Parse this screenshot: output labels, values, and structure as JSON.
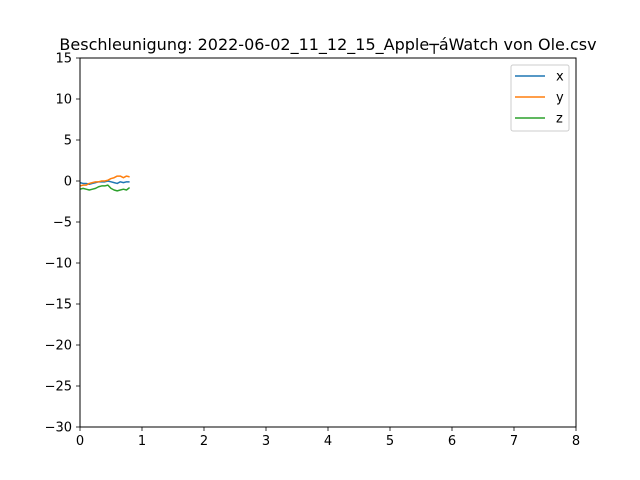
{
  "chart_data": {
    "type": "line",
    "title": "Beschleunigung: 2022-06-02_11_12_15_Apple┬áWatch von Ole.csv",
    "xlabel": "",
    "ylabel": "",
    "xlim": [
      0,
      8
    ],
    "ylim": [
      -30,
      15
    ],
    "xticks": [
      0,
      1,
      2,
      3,
      4,
      5,
      6,
      7,
      8
    ],
    "yticks": [
      -30,
      -25,
      -20,
      -15,
      -10,
      -5,
      0,
      5,
      10,
      15
    ],
    "grid": false,
    "legend_position": "top-right",
    "series": [
      {
        "name": "x",
        "color": "#1f77b4",
        "x": [
          0,
          0.05,
          0.1,
          0.15,
          0.2,
          0.25,
          0.3,
          0.35,
          0.4,
          0.45,
          0.5,
          0.55,
          0.6,
          0.65,
          0.7,
          0.75,
          0.8
        ],
        "y": [
          -0.2,
          -0.3,
          -0.3,
          -0.4,
          -0.3,
          -0.2,
          -0.1,
          -0.1,
          -0.1,
          0.0,
          -0.1,
          -0.2,
          -0.3,
          -0.1,
          -0.2,
          -0.1,
          -0.1
        ]
      },
      {
        "name": "y",
        "color": "#ff7f0e",
        "x": [
          0,
          0.05,
          0.1,
          0.15,
          0.2,
          0.25,
          0.3,
          0.35,
          0.4,
          0.45,
          0.5,
          0.55,
          0.6,
          0.65,
          0.7,
          0.75,
          0.8
        ],
        "y": [
          -0.6,
          -0.5,
          -0.5,
          -0.3,
          -0.2,
          -0.1,
          -0.1,
          0.0,
          0.0,
          0.1,
          0.3,
          0.4,
          0.6,
          0.6,
          0.4,
          0.6,
          0.5
        ]
      },
      {
        "name": "z",
        "color": "#2ca02c",
        "x": [
          0,
          0.05,
          0.1,
          0.15,
          0.2,
          0.25,
          0.3,
          0.35,
          0.4,
          0.45,
          0.5,
          0.55,
          0.6,
          0.65,
          0.7,
          0.75,
          0.8
        ],
        "y": [
          -1.0,
          -0.9,
          -1.0,
          -1.1,
          -1.0,
          -0.9,
          -0.7,
          -0.6,
          -0.6,
          -0.5,
          -0.9,
          -1.1,
          -1.2,
          -1.1,
          -1.0,
          -1.1,
          -0.8
        ]
      }
    ]
  }
}
